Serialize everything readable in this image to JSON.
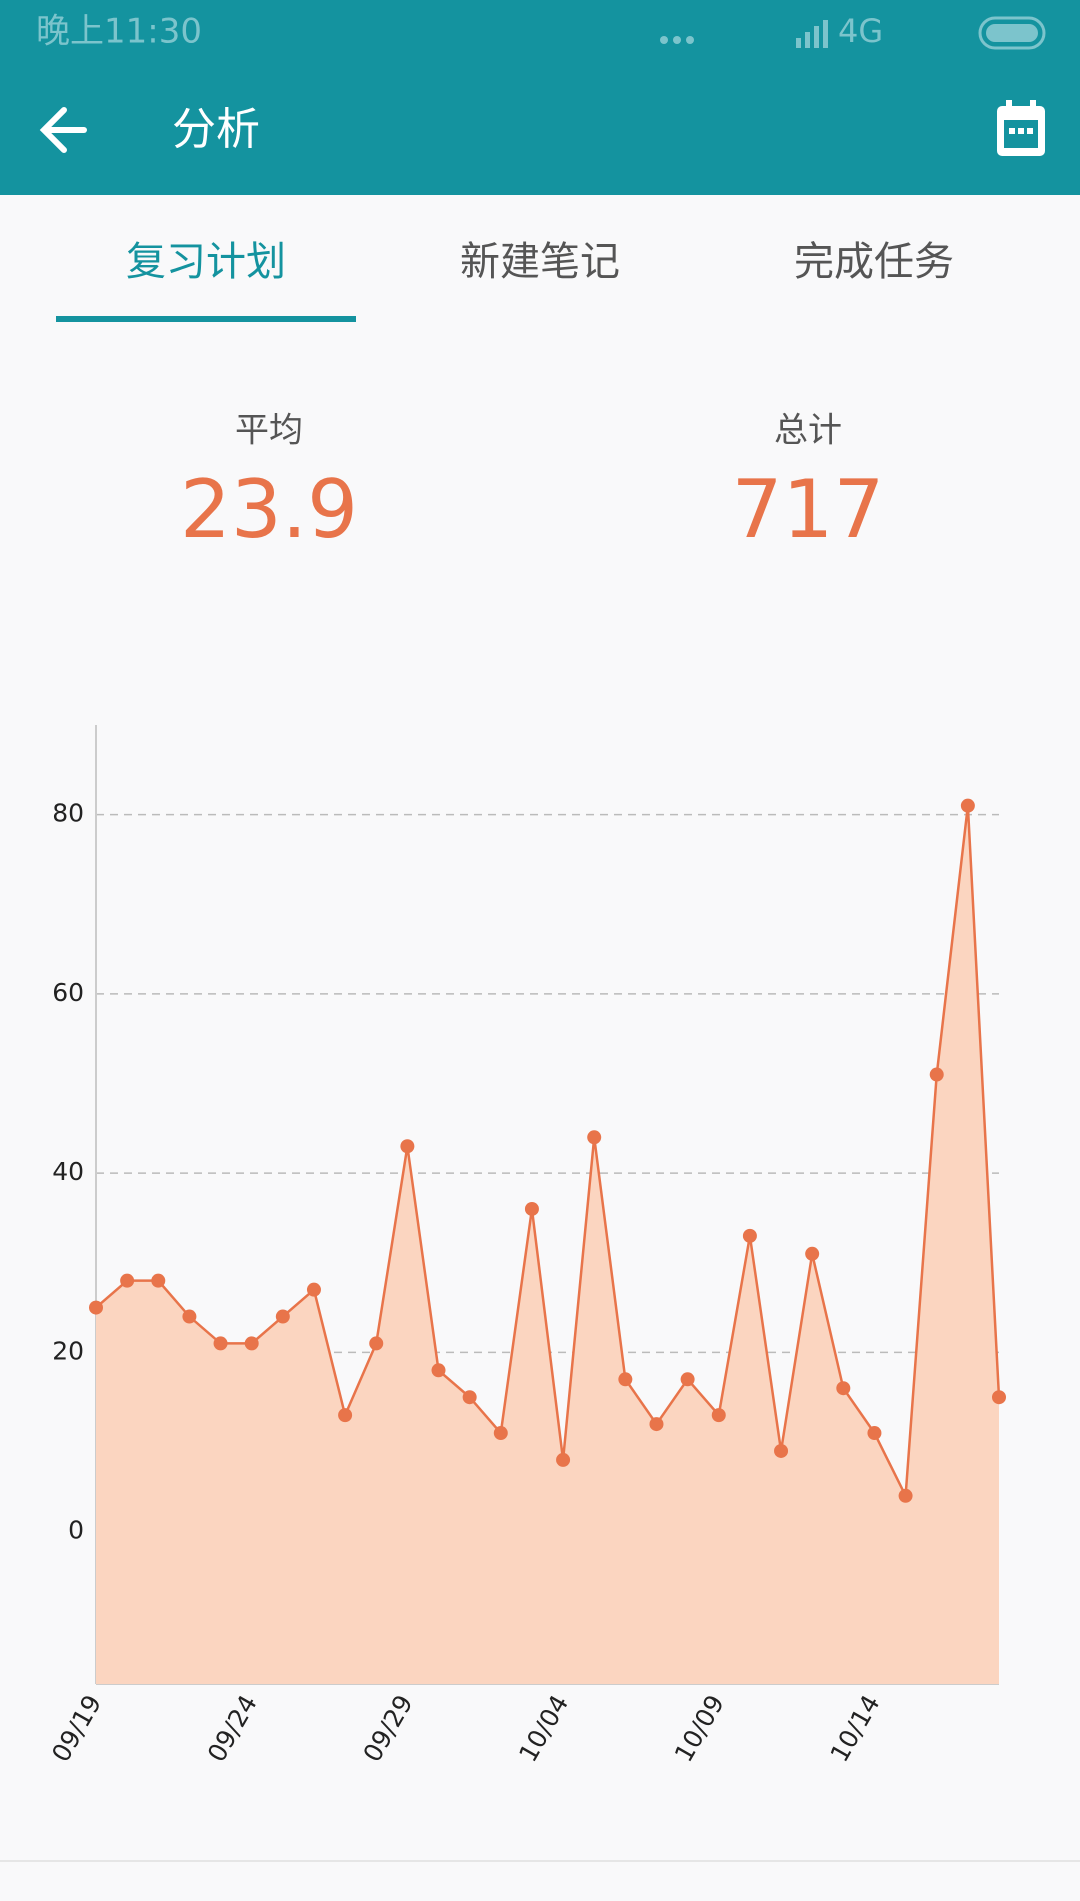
{
  "status_bar": {
    "time": "晚上11:30",
    "network": "4G"
  },
  "app_bar": {
    "title": "分析"
  },
  "tabs": [
    "复习计划",
    "新建笔记",
    "完成任务"
  ],
  "stats": [
    {
      "label": "平均",
      "value": 23.9
    },
    {
      "label": "总计",
      "value": 717
    }
  ],
  "chart_data": {
    "type": "area",
    "categories": [
      "09/19",
      null,
      null,
      null,
      null,
      "09/24",
      null,
      null,
      null,
      null,
      "09/29",
      null,
      null,
      null,
      null,
      "10/04",
      null,
      null,
      null,
      null,
      "10/09",
      null,
      null,
      null,
      null,
      "10/14",
      null,
      null,
      null,
      null
    ],
    "values": [
      25,
      28,
      28,
      24,
      21,
      21,
      24,
      27,
      13,
      21,
      43,
      18,
      15,
      11,
      36,
      8,
      44,
      17,
      12,
      17,
      13,
      33,
      9,
      31,
      16,
      11,
      4,
      51,
      81,
      15
    ],
    "color": "#e8744a",
    "fill": "#fbd5c0",
    "ylim": [
      -17,
      90
    ],
    "yticks": [
      0,
      20,
      40,
      60,
      80
    ],
    "grid": true
  }
}
